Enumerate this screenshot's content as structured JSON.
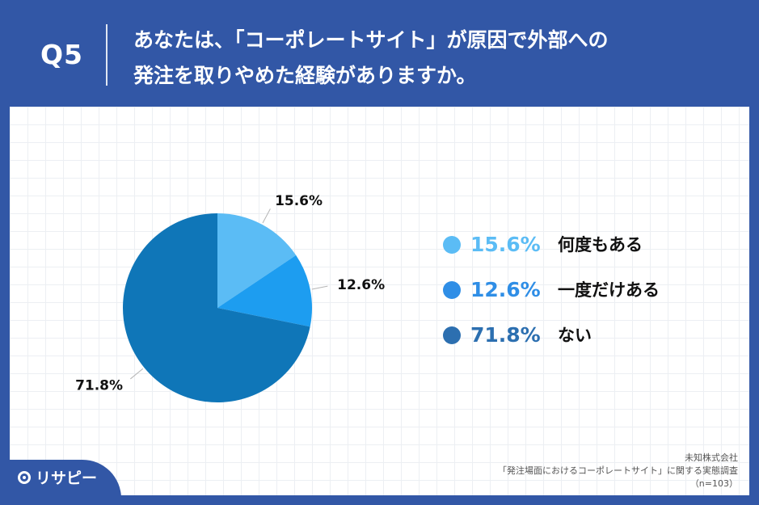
{
  "header": {
    "question_label": "Q5",
    "title_line1": "あなたは、「コーポレートサイト」が原因で外部への",
    "title_line2": "発注を取りやめた経験がありますか。"
  },
  "chart_data": {
    "type": "pie",
    "categories": [
      "何度もある",
      "一度だけある",
      "ない"
    ],
    "values": [
      15.6,
      12.6,
      71.8
    ],
    "value_labels": [
      "15.6%",
      "12.6%",
      "71.8%"
    ],
    "colors": [
      "#5bbcf5",
      "#1d9df0",
      "#0f76b8"
    ],
    "legend_colors": [
      "#5bbcf5",
      "#2f8ee6",
      "#2c6fb0"
    ],
    "legend_placement": "right",
    "start_angle": "12 o'clock",
    "direction": "clockwise"
  },
  "source": {
    "company": "未知株式会社",
    "survey": "「発注場面におけるコーポレートサイト」に関する実態調査",
    "sample": "（n=103）"
  },
  "logo": {
    "text": "リサピー"
  }
}
